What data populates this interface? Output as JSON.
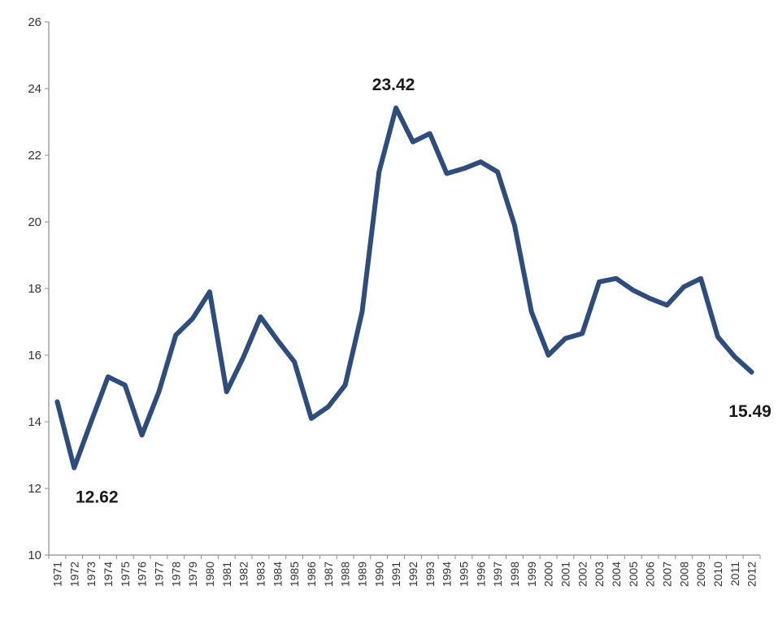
{
  "chart_data": {
    "type": "line",
    "title": "",
    "xlabel": "",
    "ylabel": "",
    "ylim": [
      10,
      26
    ],
    "yticks": [
      10,
      12,
      14,
      16,
      18,
      20,
      22,
      24,
      26
    ],
    "grid": false,
    "legend": "none",
    "line_color": "#2e4d7b",
    "categories": [
      "1971",
      "1972",
      "1973",
      "1974",
      "1975",
      "1976",
      "1977",
      "1978",
      "1979",
      "1980",
      "1981",
      "1982",
      "1983",
      "1984",
      "1985",
      "1986",
      "1987",
      "1988",
      "1989",
      "1990",
      "1991",
      "1992",
      "1993",
      "1994",
      "1995",
      "1996",
      "1997",
      "1998",
      "1999",
      "2000",
      "2001",
      "2002",
      "2003",
      "2004",
      "2005",
      "2006",
      "2007",
      "2008",
      "2009",
      "2010",
      "2011",
      "2012"
    ],
    "series": [
      {
        "values": [
          14.6,
          12.62,
          14.0,
          15.35,
          15.1,
          13.6,
          14.9,
          16.6,
          17.1,
          17.9,
          14.9,
          15.95,
          17.15,
          16.45,
          15.8,
          14.1,
          14.45,
          15.1,
          17.3,
          21.5,
          23.42,
          22.4,
          22.65,
          21.45,
          21.6,
          21.8,
          21.5,
          19.9,
          17.3,
          16.0,
          16.5,
          16.65,
          18.2,
          18.3,
          17.95,
          17.7,
          17.5,
          18.05,
          18.3,
          16.55,
          15.95,
          15.49
        ]
      }
    ],
    "annotations": [
      {
        "label": "12.62",
        "category": "1972"
      },
      {
        "label": "23.42",
        "category": "1991"
      },
      {
        "label": "15.49",
        "category": "2012"
      }
    ]
  }
}
